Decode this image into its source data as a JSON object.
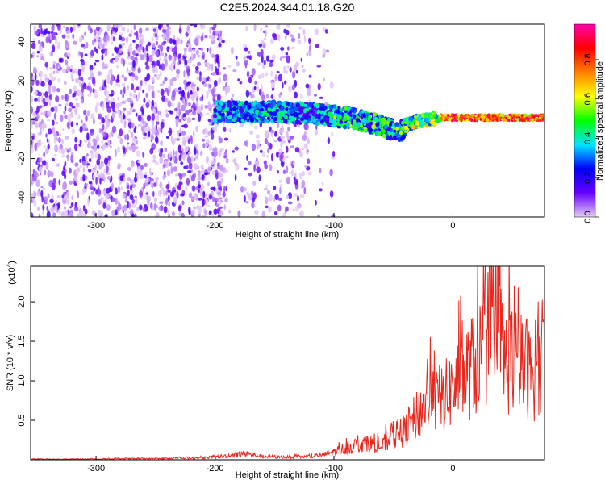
{
  "title": "C2E5.2024.344.01.18.G20",
  "chart_data": [
    {
      "type": "heatmap",
      "xlabel": "Height of straight line (km)",
      "ylabel": "Frequency (Hz)",
      "xlim": [
        -355,
        77
      ],
      "ylim": [
        -50,
        49
      ],
      "xticks": [
        -300,
        -200,
        -100,
        0
      ],
      "yticks": [
        -40,
        -20,
        0,
        20,
        40
      ],
      "colorbar": {
        "label": "Normalized spectral amplitude",
        "range": [
          0,
          0.98
        ],
        "ticks": [
          "0.0",
          "0.2",
          "0.4",
          "0.6",
          "0.8"
        ],
        "tick_values": [
          0.0,
          0.2,
          0.4,
          0.6,
          0.8
        ],
        "colors": [
          "#e6ccf7",
          "#6600ff",
          "#0000ff",
          "#00e5ff",
          "#00ff00",
          "#ffff00",
          "#ff8000",
          "#ff0000",
          "#ff00aa"
        ]
      },
      "ridge": {
        "x": [
          -355,
          -300,
          -270,
          -200,
          -150,
          -120,
          -100,
          -80,
          -60,
          -45,
          -40,
          -30,
          -20,
          -10,
          0,
          20,
          40,
          60,
          77
        ],
        "y": [
          3,
          3,
          3,
          4,
          4,
          3,
          2,
          0,
          -3,
          -7,
          -3,
          -1,
          0,
          1,
          1,
          1,
          1,
          1,
          1
        ]
      }
    },
    {
      "type": "line",
      "xlabel": "Height of straight line (km)",
      "ylabel": "SNR (10 * v/v)",
      "multiplier": "(x10",
      "multiplier_exp": "4",
      "multiplier_close": ")",
      "xlim": [
        -355,
        77
      ],
      "ylim": [
        0,
        2.45
      ],
      "xticks": [
        -300,
        -200,
        -100,
        0
      ],
      "yticks": [
        0.5,
        1.0,
        1.5,
        2.0
      ],
      "ytick_labels": [
        "0.5",
        "1.0",
        "1.5",
        "2.0"
      ],
      "series": [
        {
          "color": "#e8281e",
          "x": [
            -355,
            -320,
            -280,
            -240,
            -210,
            -190,
            -175,
            -160,
            -140,
            -120,
            -110,
            -100,
            -90,
            -80,
            -70,
            -60,
            -55,
            -50,
            -45,
            -40,
            -35,
            -30,
            -25,
            -20,
            -15,
            -10,
            -5,
            0,
            5,
            10,
            15,
            20,
            25,
            30,
            35,
            40,
            45,
            50,
            55,
            60,
            65,
            70,
            77
          ],
          "y": [
            0.01,
            0.01,
            0.015,
            0.02,
            0.03,
            0.06,
            0.09,
            0.05,
            0.04,
            0.05,
            0.07,
            0.12,
            0.18,
            0.22,
            0.25,
            0.2,
            0.3,
            0.35,
            0.4,
            0.45,
            0.55,
            0.7,
            0.8,
            1.0,
            0.9,
            0.95,
            1.0,
            1.1,
            1.2,
            1.3,
            1.4,
            1.5,
            1.7,
            1.9,
            1.6,
            1.8,
            1.5,
            1.6,
            1.4,
            1.5,
            1.3,
            1.4,
            1.35
          ]
        }
      ]
    }
  ]
}
